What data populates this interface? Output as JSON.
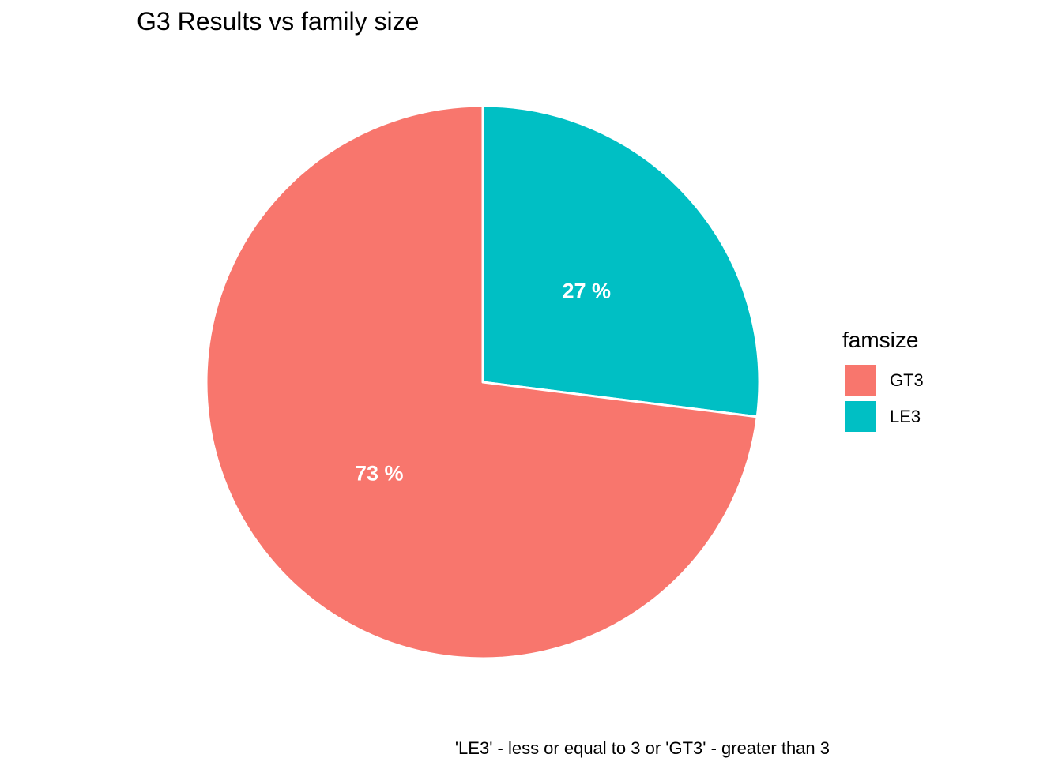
{
  "chart_data": {
    "type": "pie",
    "title": "G3 Results vs family size",
    "caption": "'LE3' - less or equal to 3 or 'GT3' - greater than 3",
    "legend": {
      "title": "famsize",
      "placement": "right"
    },
    "slices": [
      {
        "name": "GT3",
        "value": 73,
        "label": "73  %",
        "color": "#F8766D"
      },
      {
        "name": "LE3",
        "value": 27,
        "label": "27  %",
        "color": "#00BFC4"
      }
    ]
  }
}
